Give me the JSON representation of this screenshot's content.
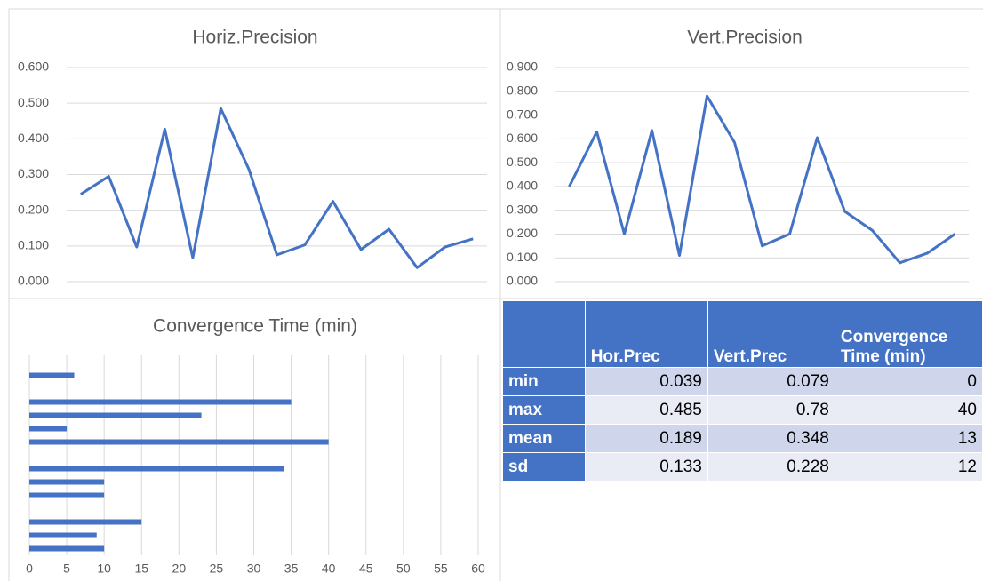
{
  "chart_data": [
    {
      "type": "line",
      "title": "Horiz.Precision",
      "color": "#4472c4",
      "grid": true,
      "categories": [
        null,
        null,
        null,
        null,
        null,
        null,
        null,
        null,
        null,
        null,
        null,
        null,
        null,
        null,
        null
      ],
      "values": [
        0.245,
        0.295,
        0.097,
        0.427,
        0.067,
        0.485,
        0.315,
        0.075,
        0.103,
        0.225,
        0.09,
        0.147,
        0.039,
        0.097,
        0.12
      ],
      "ylim": [
        0,
        0.6
      ],
      "yticks": [
        {
          "value": 0,
          "label": "0.000"
        },
        {
          "value": 0.1,
          "label": "0.100"
        },
        {
          "value": 0.2,
          "label": "0.200"
        },
        {
          "value": 0.3,
          "label": "0.300"
        },
        {
          "value": 0.4,
          "label": "0.400"
        },
        {
          "value": 0.5,
          "label": "0.500"
        },
        {
          "value": 0.6,
          "label": "0.600"
        }
      ]
    },
    {
      "type": "line",
      "title": "Vert.Precision",
      "color": "#4472c4",
      "grid": true,
      "categories": [
        null,
        null,
        null,
        null,
        null,
        null,
        null,
        null,
        null,
        null,
        null,
        null,
        null,
        null,
        null
      ],
      "values": [
        0.4,
        0.63,
        0.2,
        0.635,
        0.11,
        0.78,
        0.585,
        0.15,
        0.2,
        0.605,
        0.295,
        0.215,
        0.079,
        0.12,
        0.2
      ],
      "ylim": [
        0,
        0.9
      ],
      "yticks": [
        {
          "value": 0,
          "label": "0.000"
        },
        {
          "value": 0.1,
          "label": "0.100"
        },
        {
          "value": 0.2,
          "label": "0.200"
        },
        {
          "value": 0.3,
          "label": "0.300"
        },
        {
          "value": 0.4,
          "label": "0.400"
        },
        {
          "value": 0.5,
          "label": "0.500"
        },
        {
          "value": 0.6,
          "label": "0.600"
        },
        {
          "value": 0.7,
          "label": "0.700"
        },
        {
          "value": 0.8,
          "label": "0.800"
        },
        {
          "value": 0.9,
          "label": "0.900"
        }
      ]
    },
    {
      "type": "bar",
      "orientation": "horizontal",
      "title": "Convergence Time (min)",
      "color": "#4472c4",
      "grid": true,
      "categories": [
        null,
        null,
        null,
        null,
        null,
        null,
        null,
        null,
        null,
        null,
        null,
        null,
        null,
        null,
        null
      ],
      "values": [
        10,
        9,
        15,
        0,
        10,
        10,
        34,
        0,
        40,
        5,
        23,
        35,
        0,
        6,
        0
      ],
      "xlim": [
        0,
        60
      ],
      "xticks": [
        0,
        5,
        10,
        15,
        20,
        25,
        30,
        35,
        40,
        45,
        50,
        55,
        60
      ]
    }
  ],
  "table": {
    "columns": [
      "Hor.Prec",
      "Vert.Prec",
      "Convergence Time (min)"
    ],
    "rows": [
      [
        "min",
        0.039,
        0.079,
        0
      ],
      [
        "max",
        0.485,
        0.78,
        40
      ],
      [
        "mean",
        0.189,
        0.348,
        13
      ],
      [
        "sd",
        0.133,
        0.228,
        12
      ]
    ]
  }
}
